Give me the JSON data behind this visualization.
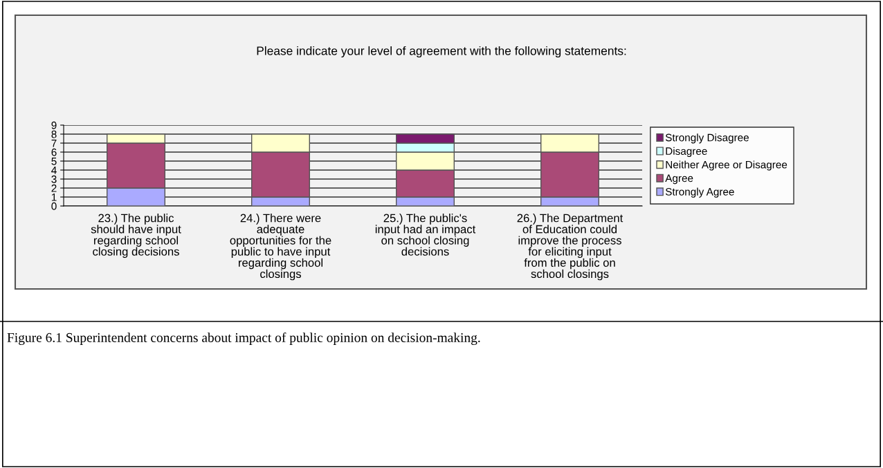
{
  "chart_data": {
    "type": "bar",
    "title": "Please indicate your level of agreement with the following statements:",
    "categories": [
      "23.) The public\nshould have input\nregarding school\nclosing decisions",
      "24.) There were\nadequate\nopportunities for the\npublic to have input\nregarding school\nclosings",
      "25.) The public's\ninput had an impact\non school closing\ndecisions",
      "26.) The Department\nof Education could\nimprove the process\nfor eliciting input\nfrom the public on\nschool closings"
    ],
    "stacked": true,
    "series": [
      {
        "name": "Strongly Agree",
        "color": "#aaaaff",
        "values": [
          2,
          1,
          1,
          1
        ]
      },
      {
        "name": "Agree",
        "color": "#aa4a77",
        "values": [
          5,
          5,
          3,
          5
        ]
      },
      {
        "name": "Neither Agree or Disagree",
        "color": "#ffffcc",
        "values": [
          1,
          2,
          2,
          2
        ]
      },
      {
        "name": "Disagree",
        "color": "#ccffff",
        "values": [
          null,
          null,
          1,
          null
        ]
      },
      {
        "name": "Strongly Disagree",
        "color": "#7b1a6e",
        "values": [
          null,
          null,
          1,
          null
        ]
      }
    ],
    "ylim": [
      0,
      9
    ],
    "yticks": [
      0,
      1,
      2,
      3,
      4,
      5,
      6,
      7,
      8,
      9
    ],
    "grid": "y",
    "legend": "right",
    "annotations": [
      "Figure 6.1 Superintendent concerns about impact of public opinion on decision-making."
    ]
  }
}
